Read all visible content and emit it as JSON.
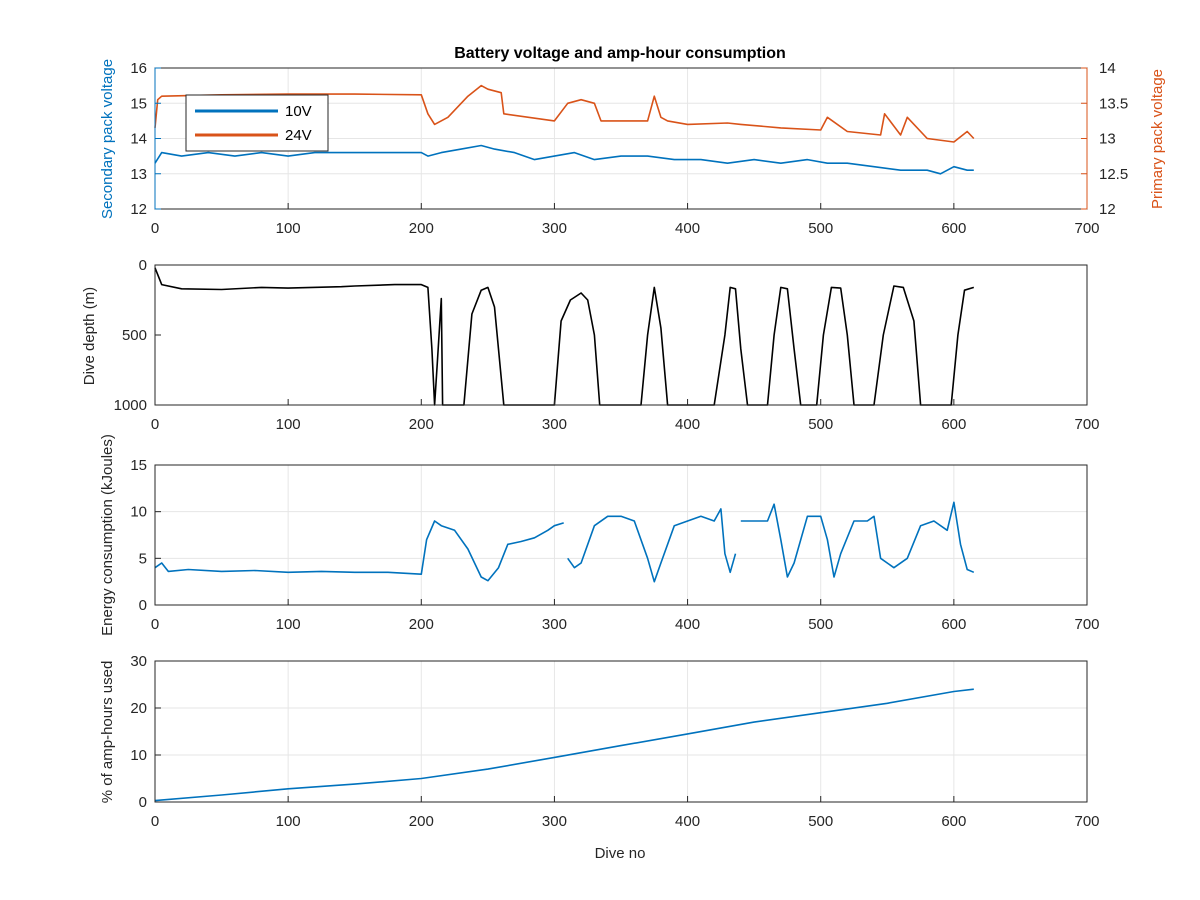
{
  "figure": {
    "title": "Battery voltage and amp-hour consumption"
  },
  "colors": {
    "blue": "#0072BD",
    "orange": "#D95319",
    "black": "#000000",
    "grid": "#e6e6e6",
    "axis": "#262626"
  },
  "chart_data": [
    {
      "type": "line",
      "title": "Battery voltage and amp-hour consumption",
      "xlabel": "",
      "ylabel": "Secondary pack voltage",
      "ylabel_right": "Primary pack voltage",
      "xlim": [
        0,
        700
      ],
      "ylim": [
        12,
        16
      ],
      "ylim_right": [
        12,
        14
      ],
      "xticks": [
        0,
        100,
        200,
        300,
        400,
        500,
        600,
        700
      ],
      "yticks": [
        12,
        13,
        14,
        15,
        16
      ],
      "yticks_right": [
        12,
        12.5,
        13,
        13.5,
        14
      ],
      "grid": true,
      "legend": {
        "placement": "top-left",
        "entries": [
          "10V",
          "24V"
        ]
      },
      "series": [
        {
          "name": "10V",
          "axis": "left",
          "color": "#0072BD",
          "x": [
            0,
            5,
            20,
            40,
            60,
            80,
            100,
            120,
            140,
            160,
            180,
            200,
            205,
            215,
            230,
            245,
            255,
            270,
            285,
            300,
            315,
            330,
            350,
            370,
            390,
            410,
            430,
            450,
            470,
            490,
            505,
            520,
            540,
            560,
            580,
            590,
            600,
            610,
            615
          ],
          "y": [
            13.3,
            13.6,
            13.5,
            13.6,
            13.5,
            13.6,
            13.5,
            13.6,
            13.6,
            13.6,
            13.6,
            13.6,
            13.5,
            13.6,
            13.7,
            13.8,
            13.7,
            13.6,
            13.4,
            13.5,
            13.6,
            13.4,
            13.5,
            13.5,
            13.4,
            13.4,
            13.3,
            13.4,
            13.3,
            13.4,
            13.3,
            13.3,
            13.2,
            13.1,
            13.1,
            13.0,
            13.2,
            13.1,
            13.1
          ]
        },
        {
          "name": "24V",
          "axis": "right",
          "color": "#D95319",
          "x": [
            0,
            2,
            5,
            50,
            100,
            150,
            200,
            205,
            210,
            220,
            235,
            245,
            250,
            260,
            262,
            300,
            310,
            320,
            330,
            335,
            370,
            375,
            380,
            385,
            400,
            430,
            440,
            470,
            500,
            505,
            520,
            545,
            548,
            560,
            565,
            580,
            600,
            610,
            615
          ],
          "y": [
            13.15,
            13.55,
            13.6,
            13.62,
            13.63,
            13.63,
            13.62,
            13.35,
            13.2,
            13.3,
            13.6,
            13.75,
            13.7,
            13.65,
            13.35,
            13.25,
            13.5,
            13.55,
            13.5,
            13.25,
            13.25,
            13.6,
            13.3,
            13.25,
            13.2,
            13.22,
            13.2,
            13.15,
            13.12,
            13.3,
            13.1,
            13.05,
            13.35,
            13.05,
            13.3,
            13.0,
            12.95,
            13.1,
            13.0
          ]
        }
      ]
    },
    {
      "type": "line",
      "title": "",
      "xlabel": "",
      "ylabel": "Dive depth (m)",
      "xlim": [
        0,
        700
      ],
      "ylim": [
        0,
        1000
      ],
      "y_reversed": true,
      "xticks": [
        0,
        100,
        200,
        300,
        400,
        500,
        600,
        700
      ],
      "yticks": [
        0,
        500,
        1000
      ],
      "grid": false,
      "series": [
        {
          "color": "#000000",
          "x": [
            0,
            5,
            20,
            50,
            80,
            100,
            140,
            150,
            180,
            200,
            205,
            208,
            210,
            212,
            215,
            216,
            218,
            220,
            232,
            238,
            245,
            250,
            255,
            262,
            268,
            300,
            305,
            312,
            320,
            325,
            330,
            334,
            350,
            365,
            370,
            375,
            380,
            385,
            420,
            428,
            432,
            436,
            440,
            445,
            460,
            465,
            470,
            475,
            480,
            485,
            497,
            502,
            508,
            515,
            520,
            525,
            540,
            547,
            555,
            562,
            570,
            575,
            598,
            603,
            608,
            615
          ],
          "y": [
            20,
            140,
            170,
            175,
            160,
            165,
            155,
            150,
            140,
            140,
            160,
            600,
            1000,
            700,
            240,
            1000,
            1000,
            1000,
            1000,
            350,
            180,
            160,
            300,
            1000,
            1000,
            1000,
            400,
            250,
            200,
            250,
            500,
            1000,
            1000,
            1000,
            500,
            160,
            450,
            1000,
            1000,
            500,
            160,
            170,
            600,
            1000,
            1000,
            500,
            160,
            170,
            600,
            1000,
            1000,
            500,
            160,
            165,
            500,
            1000,
            1000,
            500,
            150,
            160,
            400,
            1000,
            1000,
            500,
            180,
            160
          ]
        }
      ]
    },
    {
      "type": "line",
      "title": "",
      "xlabel": "",
      "ylabel": "Energy consumption (kJoules)",
      "xlim": [
        0,
        700
      ],
      "ylim": [
        0,
        15
      ],
      "xticks": [
        0,
        100,
        200,
        300,
        400,
        500,
        600,
        700
      ],
      "yticks": [
        0,
        5,
        10,
        15
      ],
      "grid": true,
      "series": [
        {
          "color": "#0072BD",
          "x": [
            0,
            5,
            10,
            25,
            50,
            75,
            100,
            125,
            150,
            175,
            200,
            204,
            210,
            215,
            225,
            235,
            245,
            250,
            258,
            265,
            275,
            285,
            295,
            300,
            307
          ],
          "y": [
            4.0,
            4.5,
            3.6,
            3.8,
            3.6,
            3.7,
            3.5,
            3.6,
            3.5,
            3.5,
            3.3,
            7.0,
            9.0,
            8.5,
            8.0,
            6.0,
            3.0,
            2.6,
            4.0,
            6.5,
            6.8,
            7.2,
            8.0,
            8.5,
            8.8
          ]
        },
        {
          "color": "#0072BD",
          "x": [
            310,
            315,
            320,
            330,
            340,
            350,
            360,
            370,
            375,
            380,
            390,
            400,
            410,
            420,
            425,
            428,
            432,
            436
          ],
          "y": [
            5.0,
            4.0,
            4.5,
            8.5,
            9.5,
            9.5,
            9.0,
            5.0,
            2.5,
            4.5,
            8.5,
            9.0,
            9.5,
            9.0,
            10.3,
            5.5,
            3.5,
            5.5
          ]
        },
        {
          "color": "#0072BD",
          "x": [
            440,
            450,
            460,
            465,
            470,
            475,
            480,
            490,
            500,
            505,
            510,
            515,
            525,
            535,
            540,
            545,
            555,
            565,
            575,
            585,
            595,
            600,
            605,
            610,
            615
          ],
          "y": [
            9.0,
            9.0,
            9.0,
            10.8,
            7.0,
            3.0,
            4.5,
            9.5,
            9.5,
            7.0,
            3.0,
            5.5,
            9.0,
            9.0,
            9.5,
            5.0,
            4.0,
            5.0,
            8.5,
            9.0,
            8.0,
            11.0,
            6.5,
            3.8,
            3.5
          ]
        }
      ]
    },
    {
      "type": "line",
      "title": "",
      "xlabel": "Dive no",
      "ylabel": "% of amp-hours used",
      "xlim": [
        0,
        700
      ],
      "ylim": [
        0,
        30
      ],
      "xticks": [
        0,
        100,
        200,
        300,
        400,
        500,
        600,
        700
      ],
      "yticks": [
        0,
        10,
        20,
        30
      ],
      "grid": true,
      "series": [
        {
          "color": "#0072BD",
          "x": [
            0,
            50,
            100,
            150,
            200,
            250,
            300,
            350,
            400,
            450,
            500,
            550,
            600,
            615
          ],
          "y": [
            0.3,
            1.5,
            2.8,
            3.8,
            5.0,
            7.0,
            9.5,
            12.0,
            14.5,
            17.0,
            19.0,
            21.0,
            23.5,
            24.0
          ]
        }
      ]
    }
  ]
}
